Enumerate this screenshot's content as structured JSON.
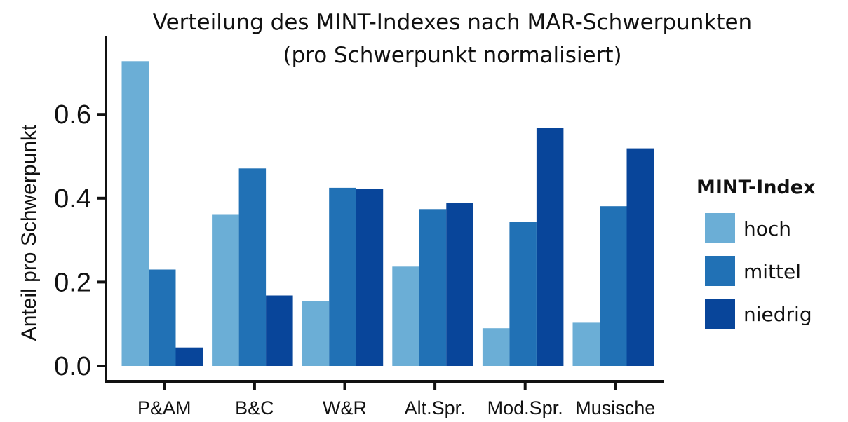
{
  "chart_data": {
    "type": "bar",
    "title": [
      "Verteilung des MINT-Indexes nach MAR-Schwerpunkten",
      "(pro Schwerpunkt normalisiert)"
    ],
    "xlabel": "",
    "ylabel": "Anteil pro Schwerpunkt",
    "ylim": [
      0,
      0.74
    ],
    "yticks": [
      0.0,
      0.2,
      0.4,
      0.6
    ],
    "ytick_labels": [
      "0.0",
      "0.2",
      "0.4",
      "0.6"
    ],
    "categories": [
      "P&AM",
      "B&C",
      "W&R",
      "Alt.Spr.",
      "Mod.Spr.",
      "Musische"
    ],
    "series": [
      {
        "name": "hoch",
        "color": "#6baed6",
        "values": [
          0.727,
          0.362,
          0.155,
          0.237,
          0.09,
          0.103
        ]
      },
      {
        "name": "mittel",
        "color": "#2171b5",
        "values": [
          0.23,
          0.471,
          0.425,
          0.374,
          0.343,
          0.381
        ]
      },
      {
        "name": "niedrig",
        "color": "#08459a",
        "values": [
          0.044,
          0.168,
          0.422,
          0.389,
          0.567,
          0.519
        ]
      }
    ],
    "legend": {
      "title": "MINT-Index",
      "position": "right"
    },
    "grid": false
  }
}
